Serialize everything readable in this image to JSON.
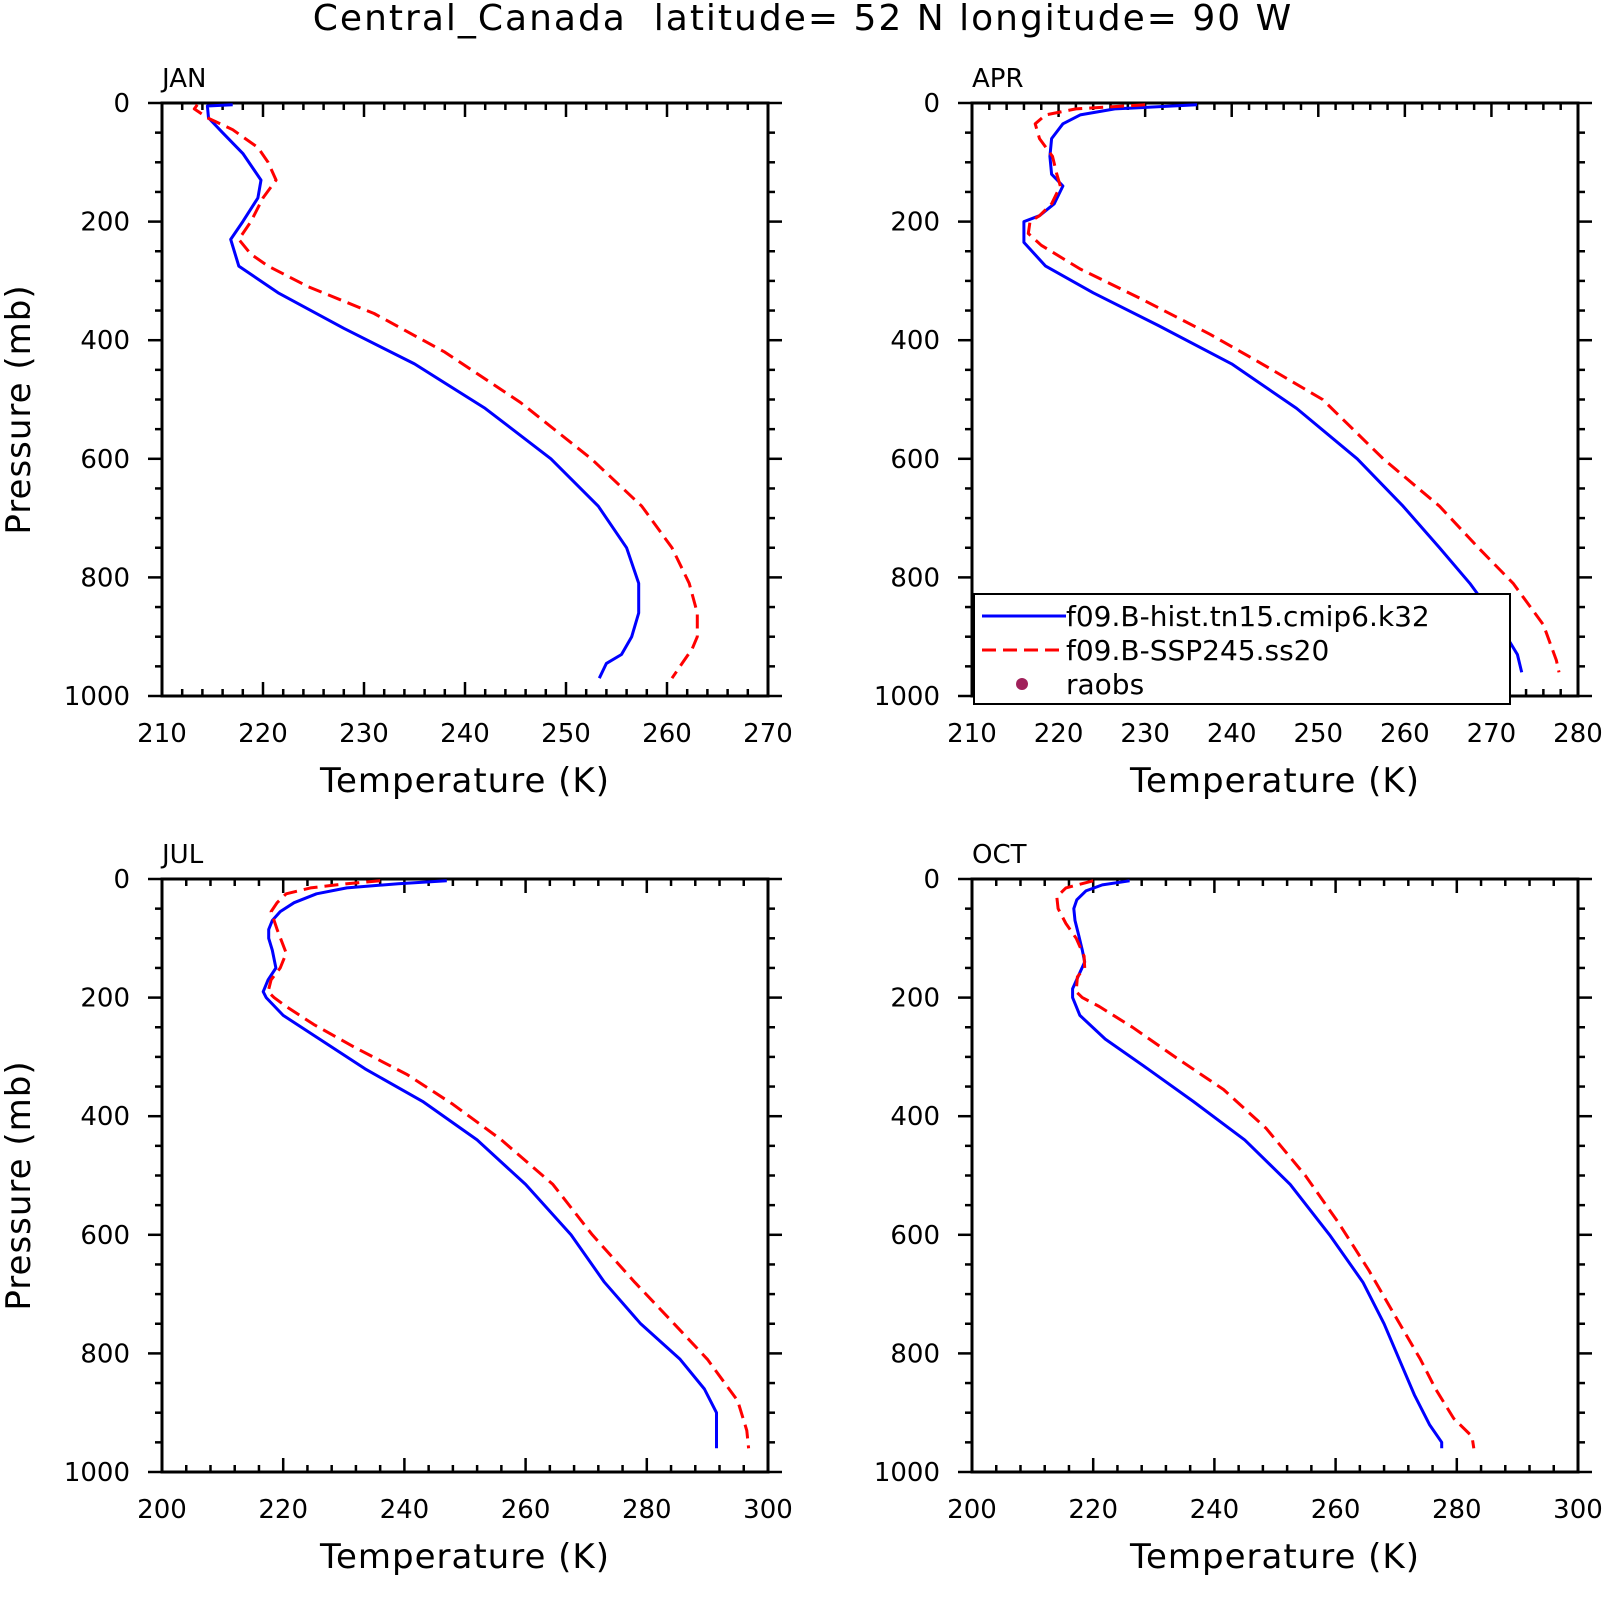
{
  "figure": {
    "title": "Central_Canada  latitude= 52 N longitude= 90 W"
  },
  "legend": {
    "items": [
      {
        "label": "f09.B-hist.tn15.cmip6.k32",
        "color": "#0000ff",
        "style": "solid"
      },
      {
        "label": "f09.B-SSP245.ss20",
        "color": "#ff0000",
        "style": "dashed"
      },
      {
        "label": "raobs",
        "color": "#a0205a",
        "style": "marker"
      }
    ]
  },
  "chart_data": [
    {
      "type": "line",
      "panel_label": "JAN",
      "xlabel": "Temperature (K)",
      "ylabel": "Pressure (mb)",
      "xlim": [
        210,
        270
      ],
      "xticks": [
        210,
        220,
        230,
        240,
        250,
        260,
        270
      ],
      "ylim": [
        1000,
        0
      ],
      "yticks": [
        0,
        200,
        400,
        600,
        800,
        1000
      ],
      "series": [
        {
          "name": "f09.B-hist.tn15.cmip6.k32",
          "color": "#0000ff",
          "dash": false,
          "x": [
            217,
            214.5,
            214.6,
            216,
            218,
            219.8,
            219.5,
            218,
            216.8,
            217.6,
            221.5,
            228,
            235,
            242,
            248.5,
            253.2,
            256,
            257.2,
            257.2,
            256.5,
            255.5,
            254,
            253.3
          ],
          "y": [
            3,
            5,
            25,
            50,
            85,
            130,
            160,
            200,
            230,
            275,
            320,
            380,
            440,
            515,
            600,
            680,
            750,
            810,
            860,
            900,
            930,
            945,
            970
          ]
        },
        {
          "name": "f09.B-SSP245.ss20",
          "color": "#ff0000",
          "dash": true,
          "x": [
            213.5,
            213.2,
            214.5,
            217,
            219.5,
            220.5,
            221.3,
            220,
            218.8,
            217.6,
            218.8,
            220.5,
            224.5,
            231,
            238,
            245.5,
            252.5,
            257.5,
            260.5,
            262.2,
            263,
            263,
            262.5,
            261.5,
            260.5
          ],
          "y": [
            3,
            10,
            25,
            45,
            75,
            100,
            130,
            160,
            200,
            230,
            255,
            275,
            310,
            355,
            420,
            505,
            600,
            680,
            750,
            810,
            860,
            900,
            920,
            945,
            970
          ]
        }
      ]
    },
    {
      "type": "line",
      "panel_label": "APR",
      "xlabel": "Temperature (K)",
      "ylabel": "",
      "xlim": [
        210,
        280
      ],
      "xticks": [
        210,
        220,
        230,
        240,
        250,
        260,
        270,
        280
      ],
      "ylim": [
        1000,
        0
      ],
      "yticks": [
        0,
        200,
        400,
        600,
        800,
        1000
      ],
      "series": [
        {
          "name": "f09.B-hist.tn15.cmip6.k32",
          "color": "#0000ff",
          "dash": false,
          "x": [
            236,
            226.5,
            222.5,
            220.5,
            219.2,
            219,
            219.2,
            220.5,
            219.5,
            217.8,
            216,
            216,
            218.5,
            224,
            231.5,
            240,
            247.5,
            254.5,
            259.8,
            264,
            267.5,
            270.5,
            273,
            273.5
          ],
          "y": [
            3,
            10,
            20,
            35,
            60,
            90,
            120,
            140,
            170,
            190,
            200,
            235,
            275,
            320,
            375,
            440,
            515,
            600,
            680,
            750,
            810,
            870,
            930,
            960
          ]
        },
        {
          "name": "f09.B-SSP245.ss20",
          "color": "#ff0000",
          "dash": true,
          "x": [
            230,
            222,
            218.5,
            217.3,
            217.8,
            219.3,
            219.8,
            220.2,
            219.2,
            217.8,
            216.7,
            216.5,
            218,
            222.5,
            229.5,
            237.5,
            243.5,
            250.5,
            257.5,
            264,
            268.5,
            272.5,
            276,
            277.5,
            277.8
          ],
          "y": [
            3,
            10,
            20,
            35,
            60,
            90,
            120,
            140,
            170,
            190,
            200,
            220,
            240,
            280,
            330,
            390,
            440,
            500,
            600,
            680,
            750,
            810,
            880,
            940,
            960
          ]
        }
      ]
    },
    {
      "type": "line",
      "panel_label": "JUL",
      "xlabel": "Temperature (K)",
      "ylabel": "Pressure (mb)",
      "xlim": [
        200,
        300
      ],
      "xticks": [
        200,
        220,
        240,
        260,
        280,
        300
      ],
      "ylim": [
        1000,
        0
      ],
      "yticks": [
        0,
        200,
        400,
        600,
        800,
        1000
      ],
      "series": [
        {
          "name": "f09.B-hist.tn15.cmip6.k32",
          "color": "#0000ff",
          "dash": false,
          "x": [
            247,
            239,
            230.5,
            225.5,
            221.8,
            219.5,
            218.2,
            217.6,
            217.6,
            218.2,
            218.8,
            217.5,
            216.7,
            217.2,
            220,
            226,
            233.5,
            243,
            252,
            260,
            267.5,
            273,
            279,
            285.5,
            289.5,
            291.5,
            291.5
          ],
          "y": [
            3,
            8,
            15,
            25,
            40,
            55,
            70,
            85,
            100,
            120,
            150,
            170,
            190,
            200,
            230,
            270,
            320,
            375,
            440,
            515,
            600,
            680,
            750,
            810,
            860,
            900,
            960
          ]
        },
        {
          "name": "f09.B-SSP245.ss20",
          "color": "#ff0000",
          "dash": true,
          "x": [
            236,
            230.5,
            224.5,
            220.5,
            219,
            218,
            219,
            220.5,
            219.5,
            218,
            217.5,
            218.5,
            220.5,
            225,
            232,
            240.5,
            248,
            256,
            264.5,
            271,
            278,
            284.5,
            290,
            295,
            296.5,
            296.8
          ],
          "y": [
            3,
            8,
            15,
            25,
            40,
            55,
            85,
            125,
            150,
            170,
            190,
            200,
            215,
            245,
            285,
            330,
            380,
            440,
            515,
            600,
            680,
            750,
            810,
            880,
            930,
            960
          ]
        }
      ]
    },
    {
      "type": "line",
      "panel_label": "OCT",
      "xlabel": "Temperature (K)",
      "ylabel": "",
      "xlim": [
        200,
        300
      ],
      "xticks": [
        200,
        220,
        240,
        260,
        280,
        300
      ],
      "ylim": [
        1000,
        0
      ],
      "yticks": [
        0,
        200,
        400,
        600,
        800,
        1000
      ],
      "series": [
        {
          "name": "f09.B-hist.tn15.cmip6.k32",
          "color": "#0000ff",
          "dash": false,
          "x": [
            226,
            221.5,
            218.8,
            217.3,
            216.8,
            217,
            217.6,
            218.2,
            218.6,
            217.5,
            216.6,
            216.6,
            217.8,
            222,
            229,
            236.5,
            245,
            252.5,
            259,
            264.5,
            268,
            270.5,
            273,
            275.5,
            277.5,
            277.5
          ],
          "y": [
            3,
            10,
            20,
            35,
            50,
            70,
            95,
            120,
            140,
            165,
            185,
            200,
            230,
            270,
            320,
            375,
            440,
            515,
            600,
            680,
            750,
            810,
            870,
            920,
            950,
            960
          ]
        },
        {
          "name": "f09.B-SSP245.ss20",
          "color": "#ff0000",
          "dash": true,
          "x": [
            220,
            215.5,
            214,
            214.2,
            215.5,
            217.2,
            218.5,
            218.6,
            217.4,
            217.2,
            218.2,
            221,
            226.5,
            233.5,
            241.5,
            248.5,
            255,
            260.5,
            265.5,
            270,
            274,
            276.5,
            279.5,
            282.5,
            282.8
          ],
          "y": [
            3,
            15,
            30,
            50,
            75,
            100,
            130,
            150,
            165,
            190,
            200,
            215,
            250,
            300,
            355,
            420,
            500,
            580,
            660,
            740,
            810,
            860,
            910,
            940,
            960
          ]
        }
      ]
    }
  ]
}
